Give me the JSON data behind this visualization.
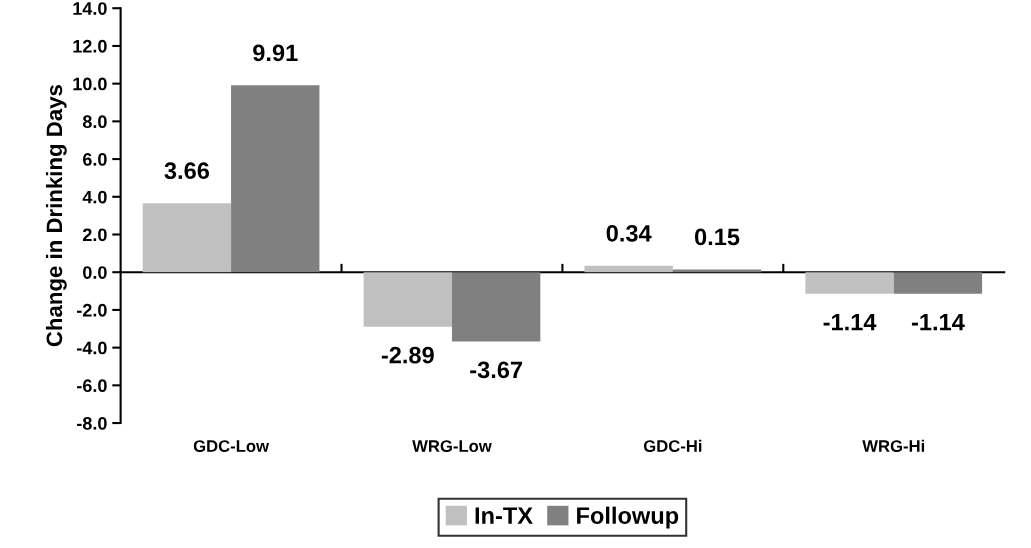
{
  "chart_data": {
    "type": "bar",
    "ylabel": "Change in Drinking Days",
    "categories": [
      "GDC-Low",
      "WRG-Low",
      "GDC-Hi",
      "WRG-Hi"
    ],
    "series": [
      {
        "name": "In-TX",
        "color": "#c0c0c0",
        "values": [
          3.66,
          -2.89,
          0.34,
          -1.14
        ]
      },
      {
        "name": "Followup",
        "color": "#808080",
        "values": [
          9.91,
          -3.67,
          0.15,
          -1.14
        ]
      }
    ],
    "ylim": [
      -8,
      14
    ],
    "yticks": [
      {
        "value": -8,
        "label": "-8.0"
      },
      {
        "value": -6,
        "label": "-6.0"
      },
      {
        "value": -4,
        "label": "-4.0"
      },
      {
        "value": -2,
        "label": "-2.0"
      },
      {
        "value": 0,
        "label": "0.0"
      },
      {
        "value": 2,
        "label": "2.0"
      },
      {
        "value": 4,
        "label": "4.0"
      },
      {
        "value": 6,
        "label": "6.0"
      },
      {
        "value": 8,
        "label": "8.0"
      },
      {
        "value": 10,
        "label": "10.0"
      },
      {
        "value": 12,
        "label": "12.0"
      },
      {
        "value": 14,
        "label": "14.0"
      }
    ],
    "data_labels": true,
    "legend": "bottom"
  }
}
